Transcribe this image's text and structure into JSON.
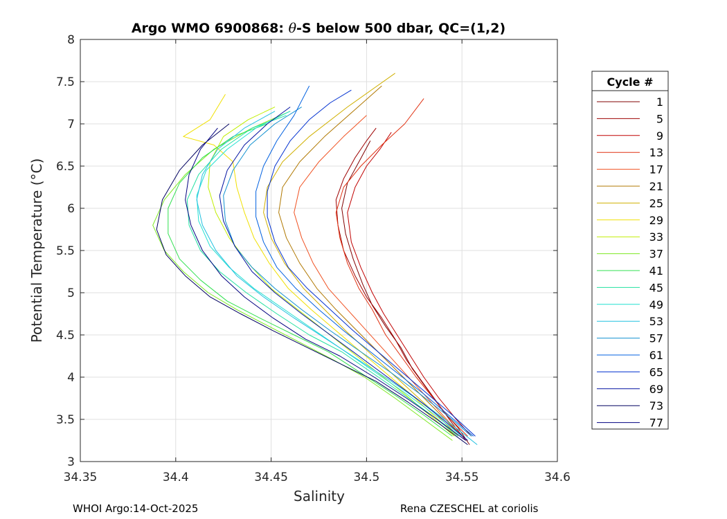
{
  "chart_data": {
    "type": "line",
    "title": "Argo WMO 6900868: θ-S below 500 dbar,  QC=(1,2)",
    "title_prefix": "Argo WMO 6900868: ",
    "title_symbol": "θ",
    "title_suffix": "-S below 500 dbar,  QC=(1,2)",
    "xlabel": "Salinity",
    "ylabel": "Potential Temperature (°C)",
    "xlim": [
      34.35,
      34.6
    ],
    "ylim": [
      3,
      8
    ],
    "xticks": [
      "34.35",
      "34.4",
      "34.45",
      "34.5",
      "34.55",
      "34.6"
    ],
    "yticks": [
      "3",
      "3.5",
      "4",
      "4.5",
      "5",
      "5.5",
      "6",
      "6.5",
      "7",
      "7.5",
      "8"
    ],
    "grid": true,
    "legend_title": "Cycle #",
    "legend_position": "right",
    "legend": [
      {
        "label": "1",
        "color": "#800000"
      },
      {
        "label": "5",
        "color": "#9d0000"
      },
      {
        "label": "9",
        "color": "#c00000"
      },
      {
        "label": "13",
        "color": "#e03010"
      },
      {
        "label": "17",
        "color": "#f05020"
      },
      {
        "label": "21",
        "color": "#b07800"
      },
      {
        "label": "25",
        "color": "#d0b000"
      },
      {
        "label": "29",
        "color": "#f0e000"
      },
      {
        "label": "33",
        "color": "#c0ee00"
      },
      {
        "label": "37",
        "color": "#7de820"
      },
      {
        "label": "41",
        "color": "#30e050"
      },
      {
        "label": "45",
        "color": "#20e0a0"
      },
      {
        "label": "49",
        "color": "#20e0d0"
      },
      {
        "label": "53",
        "color": "#20c0e0"
      },
      {
        "label": "57",
        "color": "#1090d0"
      },
      {
        "label": "61",
        "color": "#0060e0"
      },
      {
        "label": "65",
        "color": "#0030d0"
      },
      {
        "label": "69",
        "color": "#0010a0"
      },
      {
        "label": "73",
        "color": "#000060"
      },
      {
        "label": "77",
        "color": "#000080"
      }
    ],
    "series": [
      {
        "name": "1",
        "color": "#800000",
        "x": [
          34.554,
          34.548,
          34.54,
          34.532,
          34.524,
          34.518,
          34.51,
          34.503,
          34.498,
          34.493,
          34.489,
          34.487,
          34.49,
          34.496,
          34.502
        ],
        "y": [
          3.2,
          3.4,
          3.6,
          3.85,
          4.1,
          4.35,
          4.6,
          4.85,
          5.1,
          5.4,
          5.7,
          6.0,
          6.3,
          6.55,
          6.8
        ]
      },
      {
        "name": "5",
        "color": "#9d0000",
        "x": [
          34.552,
          34.545,
          34.537,
          34.529,
          34.521,
          34.515,
          34.508,
          34.5,
          34.494,
          34.488,
          34.485,
          34.484,
          34.488,
          34.494,
          34.5,
          34.505
        ],
        "y": [
          3.25,
          3.45,
          3.7,
          3.95,
          4.2,
          4.45,
          4.7,
          4.95,
          5.2,
          5.5,
          5.8,
          6.1,
          6.35,
          6.6,
          6.8,
          6.95
        ]
      },
      {
        "name": "9",
        "color": "#c00000",
        "x": [
          34.555,
          34.547,
          34.538,
          34.53,
          34.523,
          34.516,
          34.509,
          34.503,
          34.497,
          34.492,
          34.49,
          34.494,
          34.5,
          34.507,
          34.513
        ],
        "y": [
          3.3,
          3.5,
          3.75,
          4.0,
          4.25,
          4.5,
          4.75,
          5.0,
          5.3,
          5.6,
          5.95,
          6.25,
          6.5,
          6.7,
          6.9
        ]
      },
      {
        "name": "13",
        "color": "#e03010",
        "x": [
          34.553,
          34.544,
          34.535,
          34.526,
          34.518,
          34.51,
          34.503,
          34.496,
          34.49,
          34.486,
          34.484,
          34.488,
          34.497,
          34.508,
          34.52,
          34.53
        ],
        "y": [
          3.3,
          3.5,
          3.75,
          4.0,
          4.25,
          4.5,
          4.8,
          5.05,
          5.35,
          5.65,
          5.95,
          6.25,
          6.5,
          6.75,
          7.0,
          7.3
        ]
      },
      {
        "name": "17",
        "color": "#f05020",
        "x": [
          34.55,
          34.54,
          34.53,
          34.52,
          34.51,
          34.5,
          34.49,
          34.48,
          34.472,
          34.466,
          34.462,
          34.465,
          34.475,
          34.488,
          34.5
        ],
        "y": [
          3.3,
          3.55,
          3.8,
          4.05,
          4.3,
          4.55,
          4.8,
          5.05,
          5.35,
          5.65,
          5.95,
          6.25,
          6.55,
          6.85,
          7.1
        ]
      },
      {
        "name": "21",
        "color": "#b07800",
        "x": [
          34.55,
          34.539,
          34.528,
          34.517,
          34.506,
          34.495,
          34.484,
          34.474,
          34.465,
          34.458,
          34.454,
          34.456,
          34.465,
          34.478,
          34.493,
          34.508
        ],
        "y": [
          3.3,
          3.55,
          3.8,
          4.05,
          4.3,
          4.55,
          4.8,
          5.05,
          5.35,
          5.65,
          5.95,
          6.25,
          6.55,
          6.85,
          7.15,
          7.45
        ]
      },
      {
        "name": "25",
        "color": "#d0b000",
        "x": [
          34.548,
          34.537,
          34.525,
          34.513,
          34.501,
          34.489,
          34.478,
          34.467,
          34.457,
          34.45,
          34.446,
          34.448,
          34.456,
          34.47,
          34.49,
          34.515
        ],
        "y": [
          3.3,
          3.55,
          3.8,
          4.05,
          4.3,
          4.55,
          4.8,
          5.05,
          5.35,
          5.65,
          5.95,
          6.25,
          6.55,
          6.85,
          7.2,
          7.6
        ]
      },
      {
        "name": "29",
        "color": "#f0e000",
        "x": [
          34.547,
          34.535,
          34.523,
          34.51,
          34.497,
          34.484,
          34.471,
          34.459,
          34.449,
          34.441,
          34.436,
          34.432,
          34.43,
          34.42,
          34.404,
          34.418,
          34.426
        ],
        "y": [
          3.3,
          3.55,
          3.8,
          4.05,
          4.3,
          4.55,
          4.8,
          5.05,
          5.35,
          5.65,
          5.95,
          6.25,
          6.55,
          6.75,
          6.85,
          7.05,
          7.35
        ]
      },
      {
        "name": "33",
        "color": "#c0ee00",
        "x": [
          34.546,
          34.533,
          34.52,
          34.506,
          34.492,
          34.478,
          34.464,
          34.45,
          34.438,
          34.428,
          34.421,
          34.417,
          34.418,
          34.425,
          34.438,
          34.452
        ],
        "y": [
          3.3,
          3.55,
          3.8,
          4.05,
          4.3,
          4.55,
          4.8,
          5.05,
          5.35,
          5.65,
          5.95,
          6.25,
          6.55,
          6.85,
          7.05,
          7.2
        ]
      },
      {
        "name": "37",
        "color": "#7de820",
        "x": [
          34.545,
          34.53,
          34.515,
          34.499,
          34.483,
          34.466,
          34.449,
          34.432,
          34.417,
          34.404,
          34.394,
          34.388,
          34.394,
          34.405,
          34.42,
          34.44,
          34.46
        ],
        "y": [
          3.25,
          3.5,
          3.75,
          4.0,
          4.2,
          4.4,
          4.6,
          4.8,
          5.0,
          5.25,
          5.5,
          5.8,
          6.1,
          6.4,
          6.7,
          6.95,
          7.15
        ]
      },
      {
        "name": "41",
        "color": "#30e050",
        "x": [
          34.545,
          34.53,
          34.514,
          34.497,
          34.48,
          34.462,
          34.444,
          34.427,
          34.413,
          34.402,
          34.396,
          34.396,
          34.402,
          34.414,
          34.43,
          34.448
        ],
        "y": [
          3.3,
          3.55,
          3.8,
          4.05,
          4.3,
          4.5,
          4.7,
          4.9,
          5.15,
          5.4,
          5.7,
          6.0,
          6.3,
          6.6,
          6.85,
          7.0
        ]
      },
      {
        "name": "45",
        "color": "#20e0a0",
        "x": [
          34.548,
          34.534,
          34.519,
          34.503,
          34.487,
          34.47,
          34.453,
          34.437,
          34.423,
          34.413,
          34.407,
          34.406,
          34.412,
          34.424,
          34.44,
          34.458
        ],
        "y": [
          3.3,
          3.55,
          3.8,
          4.05,
          4.3,
          4.5,
          4.75,
          5.0,
          5.25,
          5.5,
          5.8,
          6.1,
          6.4,
          6.7,
          6.95,
          7.1
        ]
      },
      {
        "name": "49",
        "color": "#20e0d0",
        "x": [
          34.55,
          34.536,
          34.521,
          34.505,
          34.489,
          34.473,
          34.457,
          34.441,
          34.428,
          34.418,
          34.412,
          34.411,
          34.416,
          34.427,
          34.442,
          34.46
        ],
        "y": [
          3.3,
          3.55,
          3.8,
          4.05,
          4.3,
          4.55,
          4.8,
          5.05,
          5.3,
          5.55,
          5.85,
          6.15,
          6.45,
          6.7,
          6.95,
          7.15
        ]
      },
      {
        "name": "53",
        "color": "#20c0e0",
        "x": [
          34.558,
          34.544,
          34.529,
          34.513,
          34.496,
          34.479,
          34.462,
          34.446,
          34.432,
          34.421,
          34.414,
          34.411,
          34.414,
          34.422,
          34.436,
          34.452
        ],
        "y": [
          3.2,
          3.45,
          3.7,
          3.95,
          4.2,
          4.45,
          4.7,
          4.95,
          5.2,
          5.5,
          5.8,
          6.1,
          6.4,
          6.7,
          6.95,
          7.15
        ]
      },
      {
        "name": "57",
        "color": "#1090d0",
        "x": [
          34.555,
          34.542,
          34.528,
          34.513,
          34.497,
          34.481,
          34.466,
          34.452,
          34.44,
          34.431,
          34.426,
          34.425,
          34.43,
          34.439,
          34.452,
          34.466
        ],
        "y": [
          3.3,
          3.55,
          3.8,
          4.05,
          4.3,
          4.55,
          4.8,
          5.05,
          5.3,
          5.55,
          5.85,
          6.15,
          6.45,
          6.75,
          7.0,
          7.2
        ]
      },
      {
        "name": "61",
        "color": "#0060e0",
        "x": [
          34.556,
          34.543,
          34.53,
          34.516,
          34.502,
          34.488,
          34.475,
          34.463,
          34.453,
          34.446,
          34.442,
          34.442,
          34.446,
          34.453,
          34.462,
          34.47
        ],
        "y": [
          3.3,
          3.55,
          3.8,
          4.05,
          4.3,
          4.55,
          4.8,
          5.05,
          5.3,
          5.6,
          5.9,
          6.2,
          6.5,
          6.8,
          7.1,
          7.45
        ]
      },
      {
        "name": "65",
        "color": "#0030d0",
        "x": [
          34.557,
          34.545,
          34.532,
          34.519,
          34.506,
          34.493,
          34.481,
          34.469,
          34.459,
          34.452,
          34.448,
          34.448,
          34.452,
          34.46,
          34.47,
          34.481,
          34.492
        ],
        "y": [
          3.3,
          3.55,
          3.8,
          4.05,
          4.3,
          4.55,
          4.8,
          5.05,
          5.3,
          5.6,
          5.9,
          6.2,
          6.5,
          6.8,
          7.05,
          7.25,
          7.4
        ]
      },
      {
        "name": "69",
        "color": "#0010a0",
        "x": [
          34.553,
          34.54,
          34.526,
          34.511,
          34.496,
          34.481,
          34.466,
          34.452,
          34.44,
          34.431,
          34.425,
          34.423,
          34.427,
          34.436,
          34.448,
          34.46
        ],
        "y": [
          3.25,
          3.5,
          3.75,
          4.0,
          4.25,
          4.5,
          4.75,
          5.0,
          5.25,
          5.55,
          5.85,
          6.15,
          6.45,
          6.75,
          7.0,
          7.2
        ]
      },
      {
        "name": "73",
        "color": "#000060",
        "x": [
          34.553,
          34.538,
          34.522,
          34.505,
          34.487,
          34.469,
          34.451,
          34.434,
          34.418,
          34.405,
          34.395,
          34.39,
          34.393,
          34.402,
          34.414,
          34.428
        ],
        "y": [
          3.2,
          3.45,
          3.7,
          3.95,
          4.15,
          4.35,
          4.55,
          4.75,
          4.95,
          5.2,
          5.45,
          5.75,
          6.1,
          6.45,
          6.75,
          7.0
        ]
      },
      {
        "name": "77",
        "color": "#000080",
        "x": [
          34.552,
          34.537,
          34.521,
          34.504,
          34.486,
          34.468,
          34.451,
          34.436,
          34.424,
          34.414,
          34.408,
          34.405,
          34.407,
          34.413,
          34.422
        ],
        "y": [
          3.25,
          3.5,
          3.75,
          4.0,
          4.25,
          4.45,
          4.7,
          4.95,
          5.2,
          5.5,
          5.8,
          6.1,
          6.4,
          6.7,
          6.95
        ]
      }
    ]
  },
  "footer": {
    "left": "WHOI Argo:14-Oct-2025",
    "right": "Rena CZESCHEL at coriolis"
  }
}
